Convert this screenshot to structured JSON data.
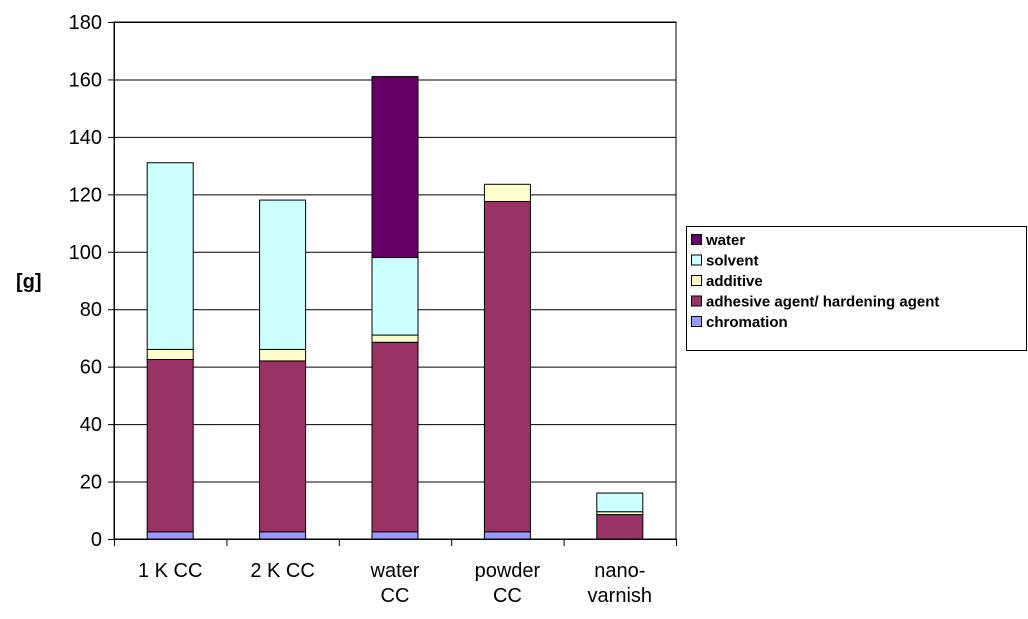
{
  "chart_data": {
    "type": "bar",
    "stacked": true,
    "categories": [
      [
        "1 K CC"
      ],
      [
        "2 K CC"
      ],
      [
        "water",
        "CC"
      ],
      [
        "powder",
        "CC"
      ],
      [
        "nano-",
        "varnish"
      ]
    ],
    "ylabel": "[g]",
    "ylim": [
      0,
      180
    ],
    "yticks": [
      0,
      20,
      40,
      60,
      80,
      100,
      120,
      140,
      160,
      180
    ],
    "grid": true,
    "legend_position": "right",
    "series": [
      {
        "name": "chromation",
        "color": "#9999ff",
        "values": [
          2.5,
          2.5,
          2.5,
          2.5,
          0
        ]
      },
      {
        "name": "adhesive agent/ hardening agent",
        "color": "#993366",
        "values": [
          60,
          59.5,
          66,
          115,
          8.5
        ]
      },
      {
        "name": "additive",
        "color": "#ffffcc",
        "values": [
          3.5,
          4,
          2.5,
          6,
          1
        ]
      },
      {
        "name": "solvent",
        "color": "#ccffff",
        "values": [
          65,
          52,
          27,
          0,
          6.5
        ]
      },
      {
        "name": "water",
        "color": "#660066",
        "values": [
          0,
          0,
          63,
          0,
          0
        ]
      }
    ],
    "legend_order": [
      "water",
      "solvent",
      "additive",
      "adhesive agent/ hardening agent",
      "chromation"
    ]
  }
}
